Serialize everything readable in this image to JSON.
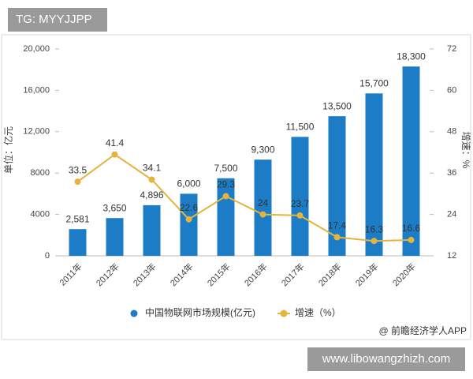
{
  "overlay_top": "TG: MYYJJPP",
  "overlay_bottom": "www.libowangzhizh.com",
  "chart_data": {
    "type": "bar",
    "y_label": "单位：亿元",
    "y2_label": "增速：%",
    "source": "@ 前瞻经济学人APP",
    "categories": [
      "2011年",
      "2012年",
      "2013年",
      "2014年",
      "2015年",
      "2016年",
      "2017年",
      "2018年",
      "2019年",
      "2020年"
    ],
    "series": [
      {
        "name": "中国物联网市场规模(亿元)",
        "type": "bar",
        "color": "#1c7cc5",
        "values": [
          2581,
          3650,
          4896,
          6000,
          7500,
          9300,
          11500,
          13500,
          15700,
          18300
        ],
        "value_labels": [
          "2,581",
          "3,650",
          "4,896",
          "6,000",
          "7,500",
          "9,300",
          "11,500",
          "13,500",
          "15,700",
          "18,300"
        ]
      },
      {
        "name": "增速（%）",
        "type": "line",
        "axis": "y2",
        "color": "#e6b43c",
        "values": [
          33.5,
          41.4,
          34.1,
          22.6,
          29.3,
          24,
          23.7,
          17.4,
          16.3,
          16.6
        ]
      }
    ],
    "ylim": [
      0,
      20000
    ],
    "yticks": [
      0,
      4000,
      8000,
      {
        "value": 12000,
        "label": "12,000"
      },
      {
        "value": 16000,
        "label": "16,000"
      },
      {
        "value": 20000,
        "label": "20,000"
      }
    ],
    "y2lim": [
      12,
      72
    ],
    "y2ticks": [
      12,
      24,
      36,
      48,
      60,
      72
    ],
    "grid": false
  }
}
